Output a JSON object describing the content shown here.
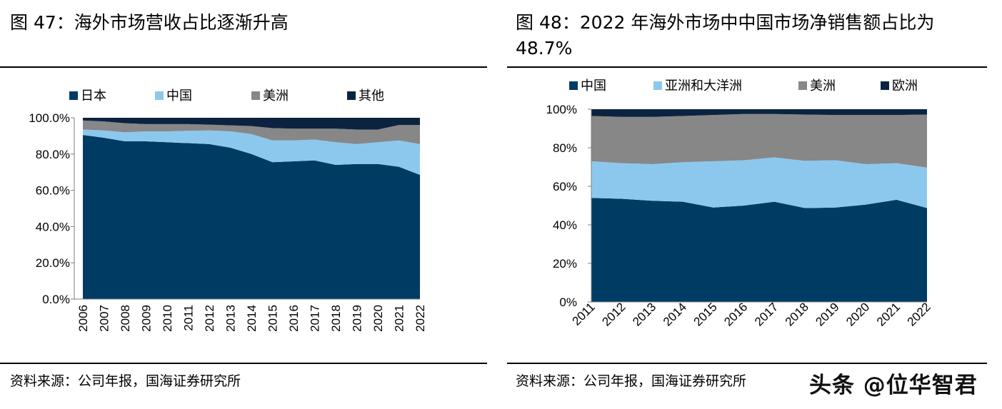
{
  "panel_left": {
    "title": "图 47：海外市场营收占比逐渐升高",
    "source": "资料来源：公司年报，国海证券研究所"
  },
  "panel_right": {
    "title": "图 48：2022 年海外市场中中国市场净销售额占比为 48.7%",
    "source": "资料来源：公司年报，国海证券研究所"
  },
  "watermark": "头条 @位华智君",
  "chart_data": [
    {
      "type": "area",
      "stacked": true,
      "title": "海外市场营收占比逐渐升高",
      "x": [
        "2006",
        "2007",
        "2008",
        "2009",
        "2010",
        "2011",
        "2012",
        "2013",
        "2014",
        "2015",
        "2016",
        "2017",
        "2018",
        "2019",
        "2020",
        "2021",
        "2022"
      ],
      "ylim": [
        0,
        100
      ],
      "yticks": [
        "0.0%",
        "20.0%",
        "40.0%",
        "60.0%",
        "80.0%",
        "100.0%"
      ],
      "legend_position": "top",
      "series": [
        {
          "name": "日本",
          "color": "#003b64",
          "values": [
            90.5,
            89,
            87,
            87,
            86.5,
            86,
            85.5,
            83.5,
            80,
            75.5,
            76,
            76.5,
            74,
            74.5,
            74.5,
            73,
            68.5
          ]
        },
        {
          "name": "中国",
          "color": "#8cc8ee",
          "values": [
            3,
            4,
            5,
            5.5,
            6,
            6.8,
            7.5,
            9,
            11,
            12,
            11.5,
            11.5,
            12.5,
            11,
            12,
            14.5,
            17
          ]
        },
        {
          "name": "美洲",
          "color": "#878787",
          "values": [
            5,
            5,
            5,
            4,
            4,
            3.7,
            3.2,
            3.3,
            4.4,
            6.8,
            6.5,
            6,
            7.5,
            8,
            7,
            8.5,
            10.5
          ]
        },
        {
          "name": "其他",
          "color": "#0c2340",
          "values": [
            1.5,
            2,
            3,
            3.5,
            3.5,
            3.5,
            3.8,
            4.2,
            4.6,
            5.7,
            6,
            6,
            6,
            6.5,
            6.5,
            4,
            4
          ]
        }
      ]
    },
    {
      "type": "area",
      "stacked": true,
      "title": "2022 年海外市场中中国市场净销售额占比为 48.7%",
      "x": [
        "2011",
        "2012",
        "2013",
        "2014",
        "2015",
        "2016",
        "2017",
        "2018",
        "2019",
        "2020",
        "2021",
        "2022"
      ],
      "ylim": [
        0,
        100
      ],
      "yticks": [
        "0%",
        "20%",
        "40%",
        "60%",
        "80%",
        "100%"
      ],
      "legend_position": "top",
      "series": [
        {
          "name": "中国",
          "color": "#003b64",
          "values": [
            54,
            53.5,
            52.5,
            52,
            49,
            50,
            52,
            48.7,
            49,
            50.5,
            53,
            48.7
          ]
        },
        {
          "name": "亚洲和大洋洲",
          "color": "#8cc8ee",
          "values": [
            19,
            18.5,
            19,
            20.5,
            24,
            23.5,
            23,
            24.5,
            24.5,
            21,
            19,
            21
          ]
        },
        {
          "name": "美洲",
          "color": "#878787",
          "values": [
            23.5,
            24,
            24.5,
            24,
            24,
            24,
            22.5,
            24,
            23.5,
            25.5,
            25,
            27.5
          ]
        },
        {
          "name": "欧洲",
          "color": "#0c2340",
          "values": [
            3.5,
            4,
            4,
            3.5,
            3,
            2.5,
            2.5,
            2.8,
            3,
            3,
            3,
            2.8
          ]
        }
      ]
    }
  ]
}
